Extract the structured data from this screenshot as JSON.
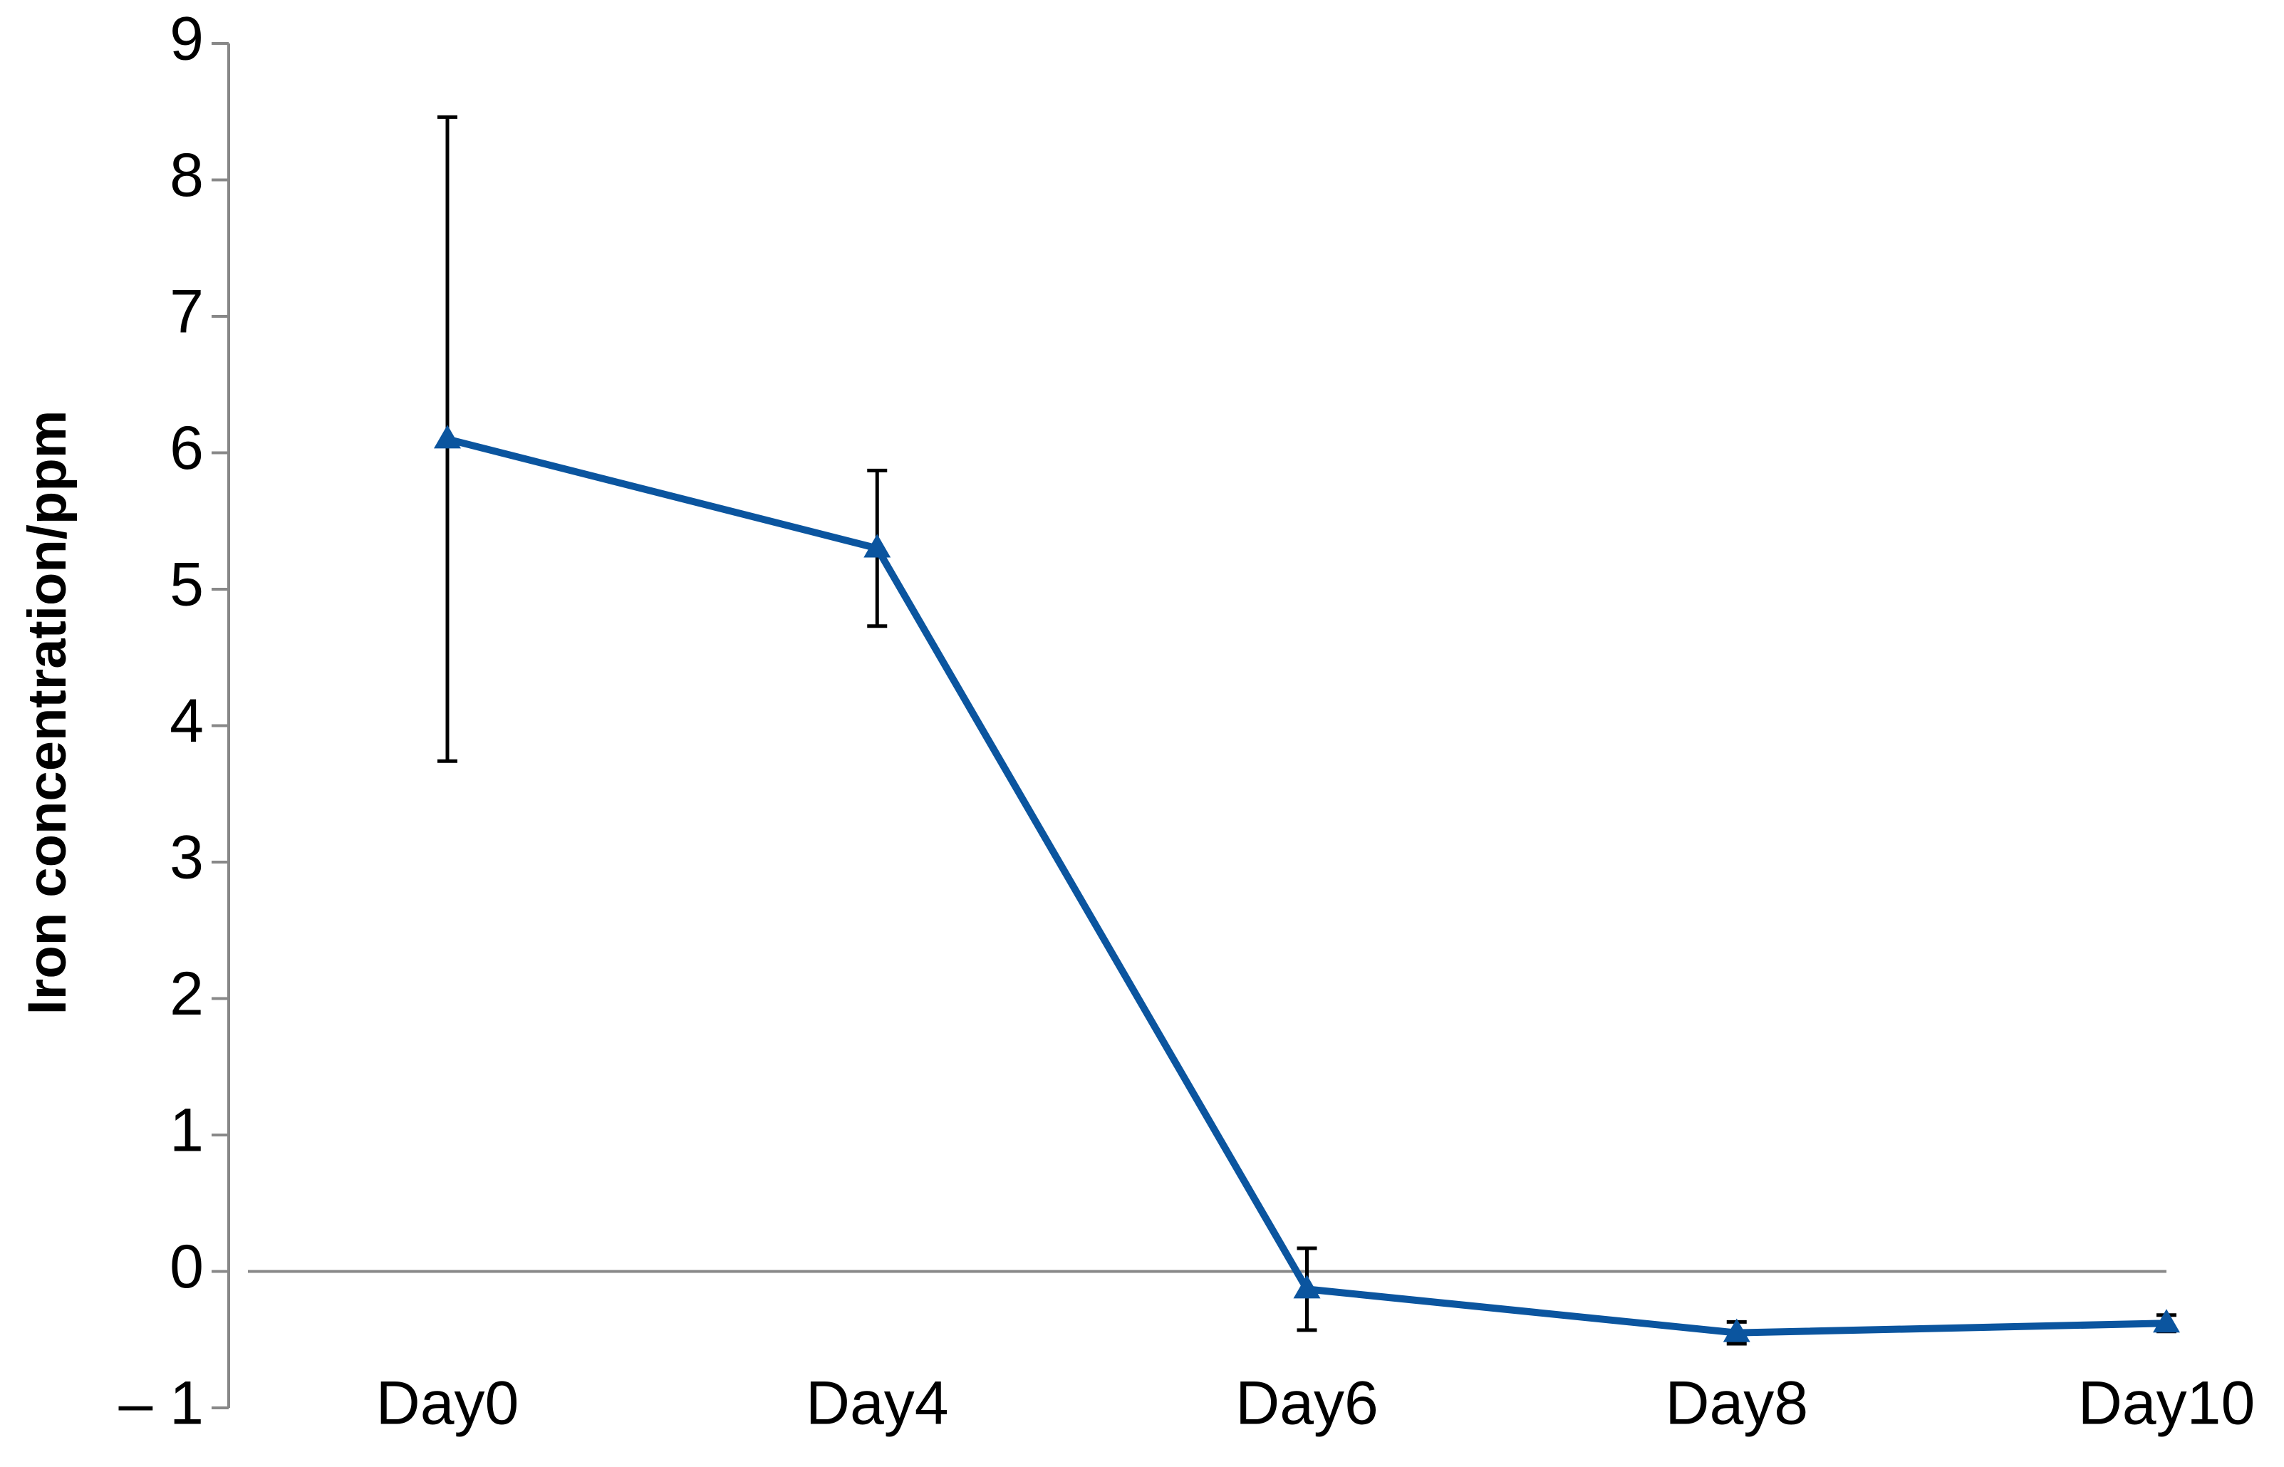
{
  "chart_data": {
    "type": "line",
    "y_label": "Iron concentration/ppm",
    "categories": [
      "Day0",
      "Day4",
      "Day6",
      "Day8",
      "Day10"
    ],
    "series": [
      {
        "values": [
          6.1,
          5.3,
          -0.13,
          -0.45,
          -0.38
        ],
        "errors": [
          2.36,
          0.57,
          0.3,
          0.08,
          0.06
        ],
        "color": "#0b559f"
      }
    ],
    "ylim": [
      -1,
      9
    ],
    "yticks": [
      {
        "value": -1,
        "label": "– 1"
      },
      0,
      1,
      2,
      3,
      4,
      5,
      6,
      7,
      8,
      9
    ],
    "grid": false
  }
}
